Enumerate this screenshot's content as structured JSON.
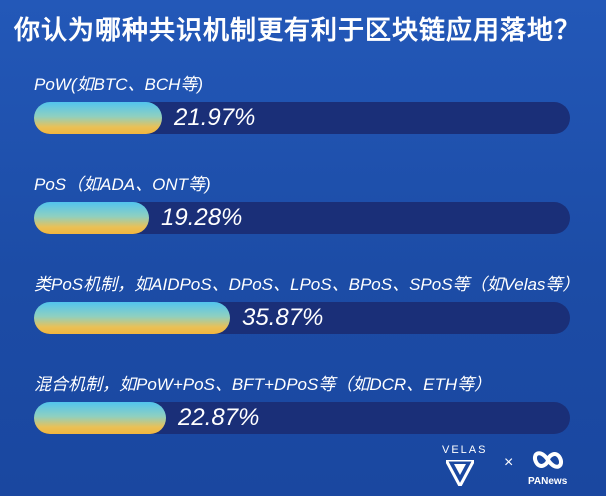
{
  "title": "你认为哪种共识机制更有利于区块链应用落地？",
  "chart_data": {
    "type": "bar",
    "categories": [
      "PoW(如BTC、BCH等)",
      "PoS（如ADA、ONT等)",
      "类PoS机制，如AIDPoS、DPoS、LPoS、BPoS、SPoS等（如Velas等）",
      "混合机制，如PoW+PoS、BFT+DPoS等（如DCR、ETH等）"
    ],
    "values": [
      21.97,
      19.28,
      35.87,
      22.87
    ],
    "value_labels": [
      "21.97%",
      "19.28%",
      "35.87%",
      "22.87%"
    ],
    "unit": "%",
    "orientation": "horizontal",
    "ylim": [
      0,
      100
    ]
  },
  "colors": {
    "background": "#1e4fa8",
    "track": "#1a2f78",
    "fill_top": "#52c4ee",
    "fill_bottom": "#f2b63e"
  },
  "logos": {
    "velas": "VELAS",
    "separator": "×",
    "panews": "PANews"
  }
}
